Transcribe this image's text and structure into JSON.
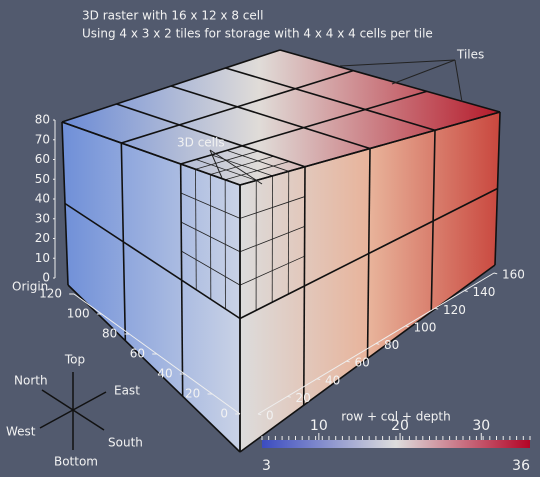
{
  "title_lines": [
    "3D raster with 16 x 12 x 8 cell",
    "Using 4 x 3 x 2 tiles for storage with 4 x 4 x 4 cells per tile"
  ],
  "annotations": {
    "tiles": "Tiles",
    "cells": "3D cells",
    "origin": "Origin"
  },
  "axes": {
    "vertical": {
      "ticks": [
        0,
        10,
        20,
        30,
        40,
        50,
        60,
        70,
        80
      ]
    },
    "left": {
      "ticks": [
        0,
        20,
        40,
        60,
        80,
        100,
        120
      ]
    },
    "right": {
      "ticks": [
        0,
        20,
        40,
        60,
        80,
        100,
        120,
        140,
        160
      ]
    }
  },
  "compass": {
    "top": "Top",
    "north": "North",
    "east": "East",
    "west": "West",
    "south": "South",
    "bottom": "Bottom"
  },
  "colorbar": {
    "title": "row + col + depth",
    "min": 3,
    "max": 36,
    "ticks": [
      10,
      20,
      30
    ],
    "colors": [
      "#3b4cc0",
      "#dddddd",
      "#b40426"
    ]
  }
}
